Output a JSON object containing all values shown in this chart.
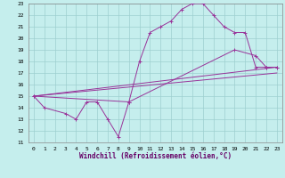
{
  "xlabel": "Windchill (Refroidissement éolien,°C)",
  "xlim": [
    -0.5,
    23.5
  ],
  "ylim": [
    11,
    23
  ],
  "yticks": [
    11,
    12,
    13,
    14,
    15,
    16,
    17,
    18,
    19,
    20,
    21,
    22,
    23
  ],
  "xticks": [
    0,
    1,
    2,
    3,
    4,
    5,
    6,
    7,
    8,
    9,
    10,
    11,
    12,
    13,
    14,
    15,
    16,
    17,
    18,
    19,
    20,
    21,
    22,
    23
  ],
  "bg_color": "#c5eeed",
  "grid_color": "#9dcfcf",
  "line_color": "#993399",
  "line1_x": [
    0,
    1,
    3,
    4,
    5,
    6,
    7,
    8,
    9,
    10,
    11,
    12,
    13,
    14,
    15,
    16,
    17,
    18,
    19,
    20,
    21,
    22,
    23
  ],
  "line1_y": [
    15,
    14,
    13.5,
    13,
    14.5,
    14.5,
    13,
    11.5,
    14.5,
    18,
    20.5,
    21,
    21.5,
    22.5,
    23,
    23,
    22,
    21,
    20.5,
    20.5,
    17.5,
    17.5,
    17.5
  ],
  "line2_x": [
    0,
    23
  ],
  "line2_y": [
    15,
    17
  ],
  "line3_x": [
    0,
    23
  ],
  "line3_y": [
    15,
    17.5
  ],
  "line4_x": [
    0,
    9,
    19,
    21,
    22,
    23
  ],
  "line4_y": [
    15,
    14.5,
    19,
    18.5,
    17.5,
    17.5
  ],
  "tick_fontsize": 4.5,
  "xlabel_fontsize": 5.5
}
